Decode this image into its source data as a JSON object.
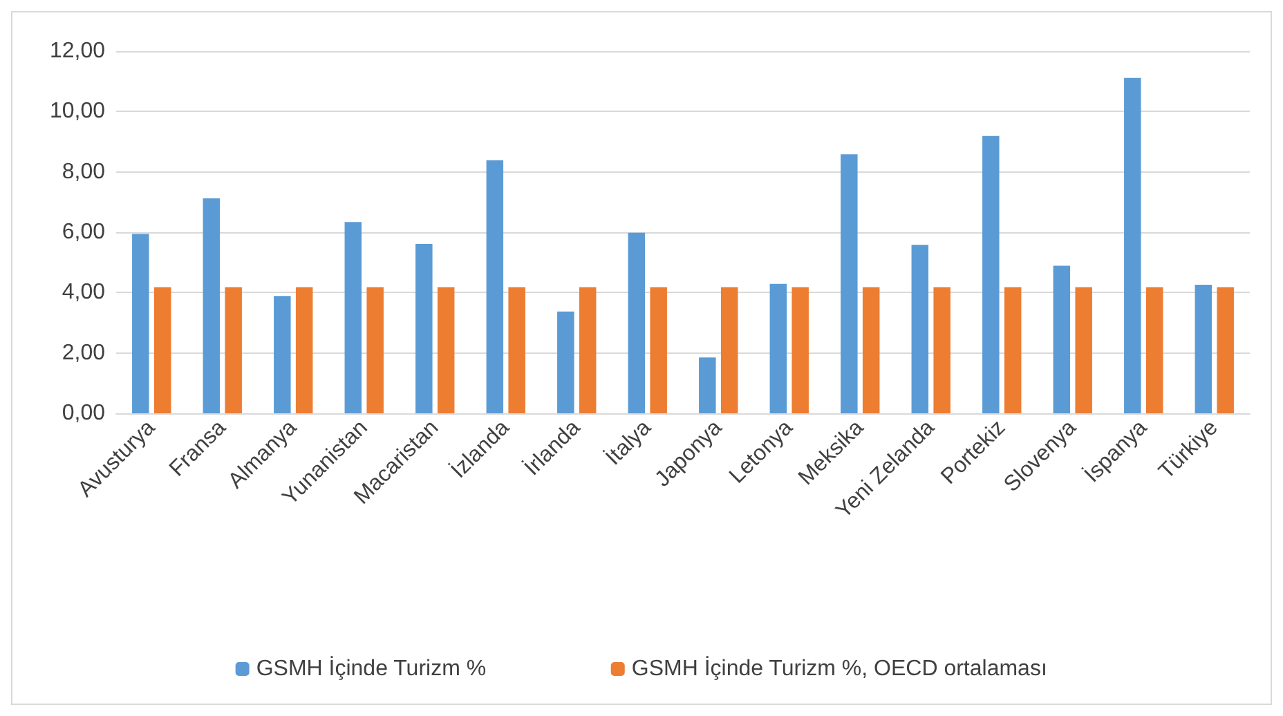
{
  "chart_data": {
    "type": "bar",
    "categories": [
      "Avusturya",
      "Fransa",
      "Almanya",
      "Yunanistan",
      "Macaristan",
      "İzlanda",
      "İrlanda",
      "İtalya",
      "Japonya",
      "Letonya",
      "Meksika",
      "Yeni Zelanda",
      "Portekiz",
      "Slovenya",
      "İspanya",
      "Türkiye"
    ],
    "series": [
      {
        "name": "GSMH İçinde Turizm %",
        "color": "#5b9bd5",
        "values": [
          5.94,
          7.12,
          3.89,
          6.34,
          5.61,
          8.38,
          3.37,
          5.98,
          1.85,
          4.29,
          8.58,
          5.58,
          9.19,
          4.89,
          11.11,
          4.26
        ]
      },
      {
        "name": "GSMH İçinde Turizm %, OECD ortalaması",
        "color": "#ed7d31",
        "values": [
          4.18,
          4.18,
          4.18,
          4.18,
          4.18,
          4.18,
          4.18,
          4.18,
          4.18,
          4.18,
          4.18,
          4.18,
          4.18,
          4.18,
          4.18,
          4.18
        ]
      }
    ],
    "ylim": [
      0,
      12
    ],
    "yticks": [
      {
        "value": 0,
        "label": "0,00"
      },
      {
        "value": 2,
        "label": "2,00"
      },
      {
        "value": 4,
        "label": "4,00"
      },
      {
        "value": 6,
        "label": "6,00"
      },
      {
        "value": 8,
        "label": "8,00"
      },
      {
        "value": 10,
        "label": "10,00"
      },
      {
        "value": 12,
        "label": "12,00"
      }
    ],
    "grid": "y",
    "legend": "bottom"
  }
}
